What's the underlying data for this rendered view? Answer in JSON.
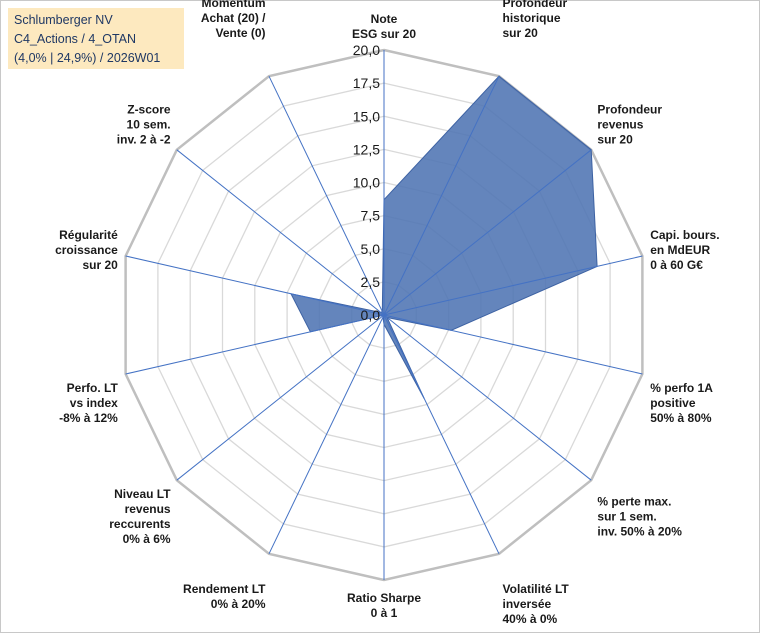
{
  "chart_data": {
    "type": "radar",
    "title_lines": [
      "Schlumberger NV",
      "C4_Actions / 4_OTAN",
      "(4,0% | 24,9%) / 2026W01"
    ],
    "rmin": 0,
    "rmax": 20,
    "ticks": [
      "0,0",
      "2,5",
      "5,0",
      "7,5",
      "10,0",
      "12,5",
      "15,0",
      "17,5",
      "20,0"
    ],
    "axes": [
      {
        "label": [
          "Note",
          "ESG sur 20"
        ],
        "value": 8.7
      },
      {
        "label": [
          "Profondeur",
          "historique",
          "sur 20"
        ],
        "value": 20.0
      },
      {
        "label": [
          "Profondeur",
          "revenus",
          "sur 20"
        ],
        "value": 20.0
      },
      {
        "label": [
          "Capi. bours.",
          "en MdEUR",
          "0 à 60 G€"
        ],
        "value": 16.5
      },
      {
        "label": [
          "% perfo 1A",
          "positive",
          "50% à 80%"
        ],
        "value": 5.2
      },
      {
        "label": [
          "% perte max.",
          "sur 1 sem.",
          "inv. 50% à 20%"
        ],
        "value": 0.3
      },
      {
        "label": [
          "Volatilité LT",
          "inversée",
          "40% à 0%"
        ],
        "value": 7.0
      },
      {
        "label": [
          "Ratio Sharpe",
          "0 à 1"
        ],
        "value": 0.7
      },
      {
        "label": [
          "Rendement LT",
          "0% à 20%"
        ],
        "value": 0.2
      },
      {
        "label": [
          "Niveau LT",
          "revenus",
          "reccurents",
          "0% à 6%"
        ],
        "value": 0.0
      },
      {
        "label": [
          "Perfo. LT",
          "vs index",
          "-8% à 12%"
        ],
        "value": 5.7
      },
      {
        "label": [
          "Régularité",
          "croissance",
          "sur 20"
        ],
        "value": 7.2
      },
      {
        "label": [
          "Z-score",
          "10 sem.",
          "inv. 2 à -2"
        ],
        "value": 0.3
      },
      {
        "label": [
          "Momentum",
          "Achat (20) /",
          "Vente (0)"
        ],
        "value": 0.3
      }
    ],
    "series": [
      {
        "name": "Schlumberger NV",
        "color": "#4f74b3"
      }
    ],
    "grid": true
  }
}
